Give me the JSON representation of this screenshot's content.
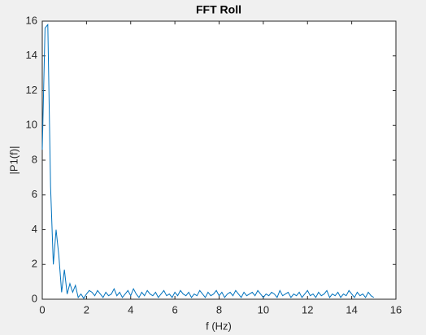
{
  "chart_data": {
    "type": "line",
    "title": "FFT Roll",
    "x_label": "f (Hz)",
    "y_label": "|P1(f)|",
    "x": [
      0,
      0.125,
      0.25,
      0.375,
      0.5,
      0.625,
      0.75,
      0.875,
      1,
      1.125,
      1.25,
      1.375,
      1.5,
      1.625,
      1.75,
      1.875,
      2,
      2.125,
      2.25,
      2.375,
      2.5,
      2.625,
      2.75,
      2.875,
      3,
      3.125,
      3.25,
      3.375,
      3.5,
      3.625,
      3.75,
      3.875,
      4,
      4.125,
      4.25,
      4.375,
      4.5,
      4.625,
      4.75,
      4.875,
      5,
      5.125,
      5.25,
      5.375,
      5.5,
      5.625,
      5.75,
      5.875,
      6,
      6.125,
      6.25,
      6.375,
      6.5,
      6.625,
      6.75,
      6.875,
      7,
      7.125,
      7.25,
      7.375,
      7.5,
      7.625,
      7.75,
      7.875,
      8,
      8.125,
      8.25,
      8.375,
      8.5,
      8.625,
      8.75,
      8.875,
      9,
      9.125,
      9.25,
      9.375,
      9.5,
      9.625,
      9.75,
      9.875,
      10,
      10.125,
      10.25,
      10.375,
      10.5,
      10.625,
      10.75,
      10.875,
      11,
      11.125,
      11.25,
      11.375,
      11.5,
      11.625,
      11.75,
      11.875,
      12,
      12.125,
      12.25,
      12.375,
      12.5,
      12.625,
      12.75,
      12.875,
      13,
      13.125,
      13.25,
      13.375,
      13.5,
      13.625,
      13.75,
      13.875,
      14,
      14.125,
      14.25,
      14.375,
      14.5,
      14.625,
      14.75,
      14.875,
      15
    ],
    "series": [
      {
        "color": "#0072bd",
        "values": [
          8.6,
          15.6,
          15.8,
          6.5,
          2.0,
          4.0,
          2.5,
          0.4,
          1.7,
          0.3,
          0.9,
          0.4,
          0.8,
          0.1,
          0.3,
          0.05,
          0.3,
          0.5,
          0.4,
          0.2,
          0.5,
          0.3,
          0.1,
          0.4,
          0.2,
          0.3,
          0.6,
          0.2,
          0.4,
          0.1,
          0.3,
          0.5,
          0.2,
          0.6,
          0.3,
          0.1,
          0.4,
          0.2,
          0.5,
          0.3,
          0.2,
          0.4,
          0.1,
          0.3,
          0.5,
          0.2,
          0.3,
          0.1,
          0.4,
          0.2,
          0.5,
          0.3,
          0.2,
          0.4,
          0.1,
          0.3,
          0.2,
          0.5,
          0.3,
          0.1,
          0.4,
          0.2,
          0.3,
          0.5,
          0.2,
          0.4,
          0.1,
          0.3,
          0.4,
          0.2,
          0.5,
          0.3,
          0.1,
          0.4,
          0.2,
          0.3,
          0.4,
          0.2,
          0.5,
          0.3,
          0.1,
          0.3,
          0.2,
          0.4,
          0.3,
          0.1,
          0.5,
          0.2,
          0.3,
          0.4,
          0.1,
          0.3,
          0.2,
          0.4,
          0.1,
          0.3,
          0.5,
          0.2,
          0.3,
          0.1,
          0.4,
          0.2,
          0.3,
          0.5,
          0.1,
          0.3,
          0.2,
          0.4,
          0.1,
          0.3,
          0.2,
          0.5,
          0.3,
          0.1,
          0.4,
          0.2,
          0.3,
          0.1,
          0.4,
          0.2,
          0.1
        ]
      }
    ],
    "xlim": [
      0,
      16
    ],
    "xticks": [
      0,
      2,
      4,
      6,
      8,
      10,
      12,
      14,
      16
    ],
    "ylim": [
      0,
      16
    ],
    "yticks": [
      0,
      2,
      4,
      6,
      8,
      10,
      12,
      14,
      16
    ]
  }
}
